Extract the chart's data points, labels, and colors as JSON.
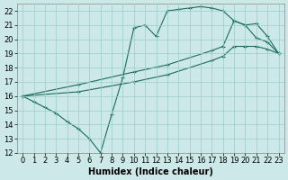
{
  "title": "",
  "xlabel": "Humidex (Indice chaleur)",
  "xlim": [
    -0.5,
    23.5
  ],
  "ylim": [
    12,
    22.5
  ],
  "xticks": [
    0,
    1,
    2,
    3,
    4,
    5,
    6,
    7,
    8,
    9,
    10,
    11,
    12,
    13,
    14,
    15,
    16,
    17,
    18,
    19,
    20,
    21,
    22,
    23
  ],
  "yticks": [
    12,
    13,
    14,
    15,
    16,
    17,
    18,
    19,
    20,
    21,
    22
  ],
  "background_color": "#cce8e8",
  "grid_color": "#99cccc",
  "line_color": "#1a6b5a",
  "line1_x": [
    0,
    1,
    2,
    3,
    4,
    5,
    6,
    7,
    8,
    9,
    10,
    11,
    12,
    13,
    14,
    15,
    16,
    17,
    18,
    19,
    20,
    21,
    22,
    23
  ],
  "line1_y": [
    16.0,
    15.6,
    15.2,
    14.8,
    14.2,
    13.7,
    13.0,
    12.0,
    14.7,
    17.3,
    20.8,
    21.0,
    20.2,
    22.0,
    22.1,
    22.2,
    22.3,
    22.2,
    22.0,
    21.3,
    21.0,
    20.1,
    19.8,
    19.0
  ],
  "line2_x": [
    0,
    5,
    10,
    13,
    17,
    18,
    19,
    20,
    21,
    22,
    23
  ],
  "line2_y": [
    16.0,
    16.8,
    17.7,
    18.2,
    19.2,
    19.5,
    21.3,
    21.0,
    21.1,
    20.2,
    19.0
  ],
  "line3_x": [
    0,
    5,
    10,
    13,
    17,
    18,
    19,
    20,
    21,
    22,
    23
  ],
  "line3_y": [
    16.0,
    16.3,
    17.0,
    17.5,
    18.5,
    18.8,
    19.5,
    19.5,
    19.5,
    19.3,
    19.0
  ],
  "font_size_label": 7,
  "font_size_tick": 6
}
